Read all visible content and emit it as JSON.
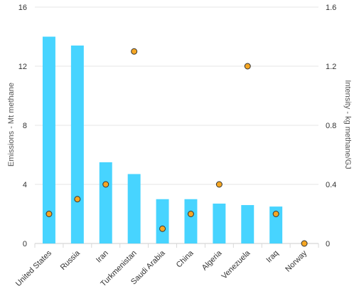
{
  "chart_data": {
    "type": "bar",
    "title": "",
    "xlabel": "",
    "categories": [
      "United States",
      "Russia",
      "Iran",
      "Turkmenistan",
      "Saudi Arabia",
      "China",
      "Algeria",
      "Venezuela",
      "Iraq",
      "Norway"
    ],
    "series": [
      {
        "name": "Emissions - Mt methane",
        "type": "bar",
        "axis": "left",
        "color": "#47d4ff",
        "values": [
          14.0,
          13.4,
          5.5,
          4.7,
          3.0,
          3.0,
          2.7,
          2.6,
          2.5,
          0.0
        ]
      },
      {
        "name": "Intensity - kg methane/GJ",
        "type": "scatter",
        "axis": "right",
        "color": "#f5a623",
        "values": [
          0.2,
          0.3,
          0.4,
          1.3,
          0.1,
          0.2,
          0.4,
          1.2,
          0.2,
          0.0
        ]
      }
    ],
    "ylabel_left": "Emissions - Mt methane",
    "ylabel_right": "Intensity - kg methane/GJ",
    "ylim_left": [
      0,
      16
    ],
    "ylim_right": [
      0,
      1.6
    ],
    "yticks_left": [
      "0",
      "4",
      "8",
      "12",
      "16"
    ],
    "yticks_right": [
      "0",
      "0.4",
      "0.8",
      "1.2",
      "1.6"
    ],
    "grid": true,
    "legend": "none"
  }
}
